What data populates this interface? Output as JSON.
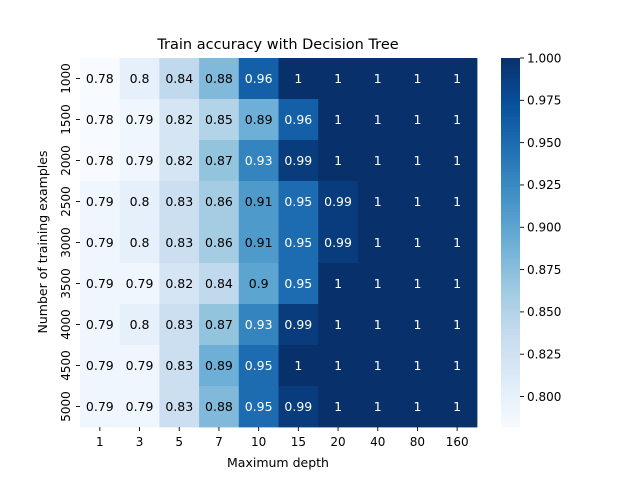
{
  "chart_data": {
    "type": "heatmap",
    "title": "Train accuracy with Decision Tree",
    "xlabel": "Maximum depth",
    "ylabel": "Number of training examples",
    "x_categories": [
      "1",
      "3",
      "5",
      "7",
      "10",
      "15",
      "20",
      "40",
      "80",
      "160"
    ],
    "y_categories": [
      "1000",
      "1500",
      "2000",
      "2500",
      "3000",
      "3500",
      "4000",
      "4500",
      "5000"
    ],
    "values": [
      [
        0.78,
        0.8,
        0.84,
        0.88,
        0.96,
        1.0,
        1.0,
        1.0,
        1.0,
        1.0
      ],
      [
        0.78,
        0.79,
        0.82,
        0.85,
        0.89,
        0.96,
        1.0,
        1.0,
        1.0,
        1.0
      ],
      [
        0.78,
        0.79,
        0.82,
        0.87,
        0.93,
        0.99,
        1.0,
        1.0,
        1.0,
        1.0
      ],
      [
        0.79,
        0.8,
        0.83,
        0.86,
        0.91,
        0.95,
        0.99,
        1.0,
        1.0,
        1.0
      ],
      [
        0.79,
        0.8,
        0.83,
        0.86,
        0.91,
        0.95,
        0.99,
        1.0,
        1.0,
        1.0
      ],
      [
        0.79,
        0.79,
        0.82,
        0.84,
        0.9,
        0.95,
        1.0,
        1.0,
        1.0,
        1.0
      ],
      [
        0.79,
        0.8,
        0.83,
        0.87,
        0.93,
        0.99,
        1.0,
        1.0,
        1.0,
        1.0
      ],
      [
        0.79,
        0.79,
        0.83,
        0.89,
        0.95,
        1.0,
        1.0,
        1.0,
        1.0,
        1.0
      ],
      [
        0.79,
        0.79,
        0.83,
        0.88,
        0.95,
        0.99,
        1.0,
        1.0,
        1.0,
        1.0
      ]
    ],
    "cell_labels": [
      [
        "0.78",
        "0.8",
        "0.84",
        "0.88",
        "0.96",
        "1",
        "1",
        "1",
        "1",
        "1"
      ],
      [
        "0.78",
        "0.79",
        "0.82",
        "0.85",
        "0.89",
        "0.96",
        "1",
        "1",
        "1",
        "1"
      ],
      [
        "0.78",
        "0.79",
        "0.82",
        "0.87",
        "0.93",
        "0.99",
        "1",
        "1",
        "1",
        "1"
      ],
      [
        "0.79",
        "0.8",
        "0.83",
        "0.86",
        "0.91",
        "0.95",
        "0.99",
        "1",
        "1",
        "1"
      ],
      [
        "0.79",
        "0.8",
        "0.83",
        "0.86",
        "0.91",
        "0.95",
        "0.99",
        "1",
        "1",
        "1"
      ],
      [
        "0.79",
        "0.79",
        "0.82",
        "0.84",
        "0.9",
        "0.95",
        "1",
        "1",
        "1",
        "1"
      ],
      [
        "0.79",
        "0.8",
        "0.83",
        "0.87",
        "0.93",
        "0.99",
        "1",
        "1",
        "1",
        "1"
      ],
      [
        "0.79",
        "0.79",
        "0.83",
        "0.89",
        "0.95",
        "1",
        "1",
        "1",
        "1",
        "1"
      ],
      [
        "0.79",
        "0.79",
        "0.83",
        "0.88",
        "0.95",
        "0.99",
        "1",
        "1",
        "1",
        "1"
      ]
    ],
    "color_range": [
      0.782,
      1.0
    ],
    "colormap": "Blues",
    "colorbar_ticks": [
      "0.800",
      "0.825",
      "0.850",
      "0.875",
      "0.900",
      "0.925",
      "0.950",
      "0.975",
      "1.000"
    ],
    "colorbar_tick_values": [
      0.8,
      0.825,
      0.85,
      0.875,
      0.9,
      0.925,
      0.95,
      0.975,
      1.0
    ],
    "colors": {
      "text_dark": "#000000",
      "text_light": "#ffffff",
      "low": "#f7fbff",
      "high": "#08306b"
    }
  }
}
